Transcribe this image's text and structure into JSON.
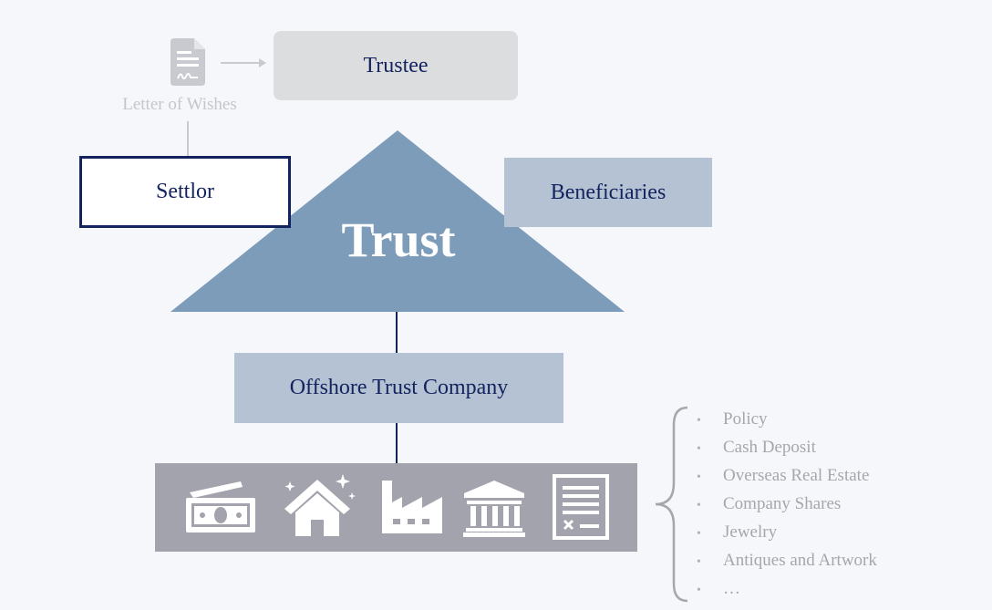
{
  "nodes": {
    "trustee": "Trustee",
    "letter_of_wishes": "Letter of Wishes",
    "settlor": "Settlor",
    "beneficiaries": "Beneficiaries",
    "trust": "Trust",
    "offshore_trust_company": "Offshore Trust Company"
  },
  "assets": [
    "Policy",
    "Cash Deposit",
    "Overseas Real Estate",
    "Company Shares",
    "Jewelry",
    "Antiques and Artwork",
    "…"
  ],
  "asset_icons": [
    "cash-icon",
    "house-icon",
    "factory-icon",
    "bank-icon",
    "document-icon"
  ],
  "colors": {
    "navy": "#13235e",
    "trust_triangle": "#7d9cba",
    "light_blue_box": "#b5c2d3",
    "asset_bar": "#a3a3ad",
    "trustee_box": "#dcdddf",
    "muted_text": "#a5a7ad"
  }
}
